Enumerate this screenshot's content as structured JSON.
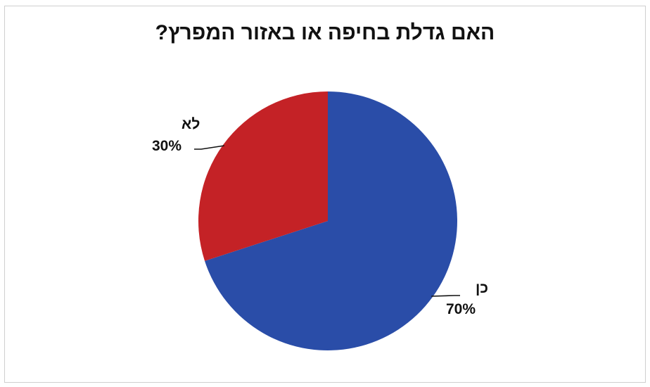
{
  "chart_data": {
    "type": "pie",
    "title": "האם גדלת בחיפה או באזור המפרץ?",
    "slices": [
      {
        "label": "כן",
        "value": 70,
        "value_label": "70%",
        "color": "#2a4da8",
        "label_side": "right"
      },
      {
        "label": "לא",
        "value": 30,
        "value_label": "30%",
        "color": "#c42226",
        "label_side": "left"
      }
    ],
    "start_angle_deg": 0,
    "direction": "clockwise",
    "legend": "none",
    "grid": false
  }
}
